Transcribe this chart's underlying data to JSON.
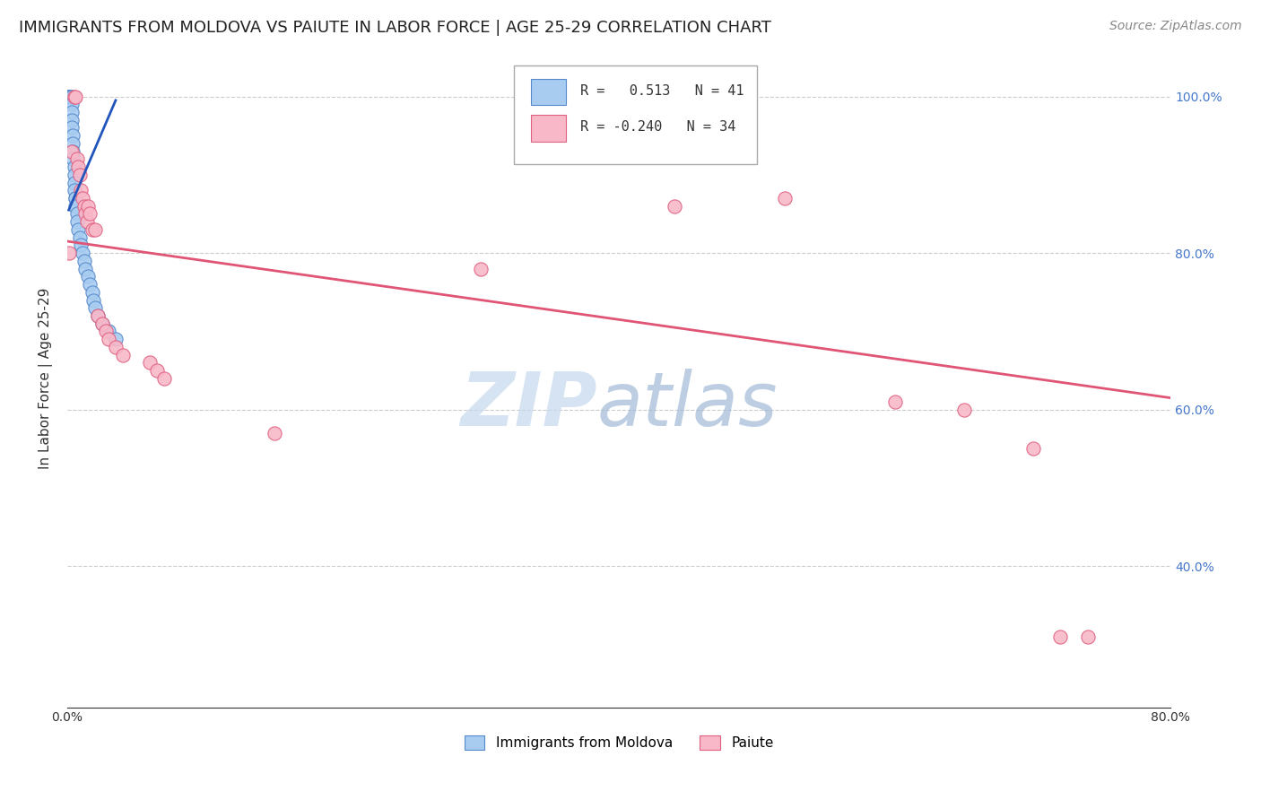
{
  "title": "IMMIGRANTS FROM MOLDOVA VS PAIUTE IN LABOR FORCE | AGE 25-29 CORRELATION CHART",
  "source": "Source: ZipAtlas.com",
  "ylabel": "In Labor Force | Age 25-29",
  "legend_blue_r": "0.513",
  "legend_blue_n": "41",
  "legend_pink_r": "-0.240",
  "legend_pink_n": "34",
  "legend_label_blue": "Immigrants from Moldova",
  "legend_label_pink": "Paiute",
  "xlim": [
    0.0,
    0.8
  ],
  "ylim": [
    0.22,
    1.06
  ],
  "yticks": [
    0.4,
    0.6,
    0.8,
    1.0
  ],
  "ytick_labels": [
    "40.0%",
    "60.0%",
    "80.0%",
    "100.0%"
  ],
  "xticks": [
    0.0,
    0.1,
    0.2,
    0.3,
    0.4,
    0.5,
    0.6,
    0.7,
    0.8
  ],
  "blue_scatter_x": [
    0.001,
    0.001,
    0.001,
    0.001,
    0.002,
    0.002,
    0.002,
    0.002,
    0.003,
    0.003,
    0.003,
    0.003,
    0.003,
    0.004,
    0.004,
    0.004,
    0.004,
    0.005,
    0.005,
    0.005,
    0.005,
    0.006,
    0.006,
    0.006,
    0.007,
    0.007,
    0.008,
    0.009,
    0.01,
    0.011,
    0.012,
    0.013,
    0.015,
    0.016,
    0.018,
    0.019,
    0.02,
    0.022,
    0.025,
    0.03,
    0.035
  ],
  "blue_scatter_y": [
    1.0,
    1.0,
    1.0,
    1.0,
    1.0,
    1.0,
    1.0,
    1.0,
    1.0,
    0.99,
    0.98,
    0.97,
    0.96,
    0.95,
    0.94,
    0.93,
    0.92,
    0.91,
    0.9,
    0.89,
    0.88,
    0.87,
    0.87,
    0.86,
    0.85,
    0.84,
    0.83,
    0.82,
    0.81,
    0.8,
    0.79,
    0.78,
    0.77,
    0.76,
    0.75,
    0.74,
    0.73,
    0.72,
    0.71,
    0.7,
    0.69
  ],
  "pink_scatter_x": [
    0.001,
    0.003,
    0.005,
    0.006,
    0.007,
    0.008,
    0.009,
    0.01,
    0.011,
    0.012,
    0.013,
    0.014,
    0.015,
    0.016,
    0.018,
    0.02,
    0.022,
    0.025,
    0.028,
    0.03,
    0.035,
    0.04,
    0.06,
    0.065,
    0.07,
    0.15,
    0.3,
    0.44,
    0.52,
    0.6,
    0.65,
    0.7,
    0.72,
    0.74
  ],
  "pink_scatter_y": [
    0.8,
    0.93,
    1.0,
    1.0,
    0.92,
    0.91,
    0.9,
    0.88,
    0.87,
    0.86,
    0.85,
    0.84,
    0.86,
    0.85,
    0.83,
    0.83,
    0.72,
    0.71,
    0.7,
    0.69,
    0.68,
    0.67,
    0.66,
    0.65,
    0.64,
    0.57,
    0.78,
    0.86,
    0.87,
    0.61,
    0.6,
    0.55,
    0.31,
    0.31
  ],
  "blue_line_x": [
    0.001,
    0.035
  ],
  "blue_line_y": [
    0.855,
    0.995
  ],
  "pink_line_x": [
    0.0,
    0.8
  ],
  "pink_line_y": [
    0.815,
    0.615
  ],
  "blue_color": "#a8ccf0",
  "blue_edge_color": "#5588cc",
  "pink_color": "#f8b8c8",
  "pink_edge_color": "#e06080",
  "blue_line_color": "#2255bb",
  "pink_line_color": "#e05575",
  "watermark_zip_color": "#c5d8ef",
  "watermark_atlas_color": "#9ab5d5",
  "title_fontsize": 13,
  "axis_label_fontsize": 11,
  "tick_fontsize": 10,
  "source_fontsize": 10,
  "scatter_size": 120,
  "background_color": "#ffffff",
  "grid_color": "#cccccc"
}
